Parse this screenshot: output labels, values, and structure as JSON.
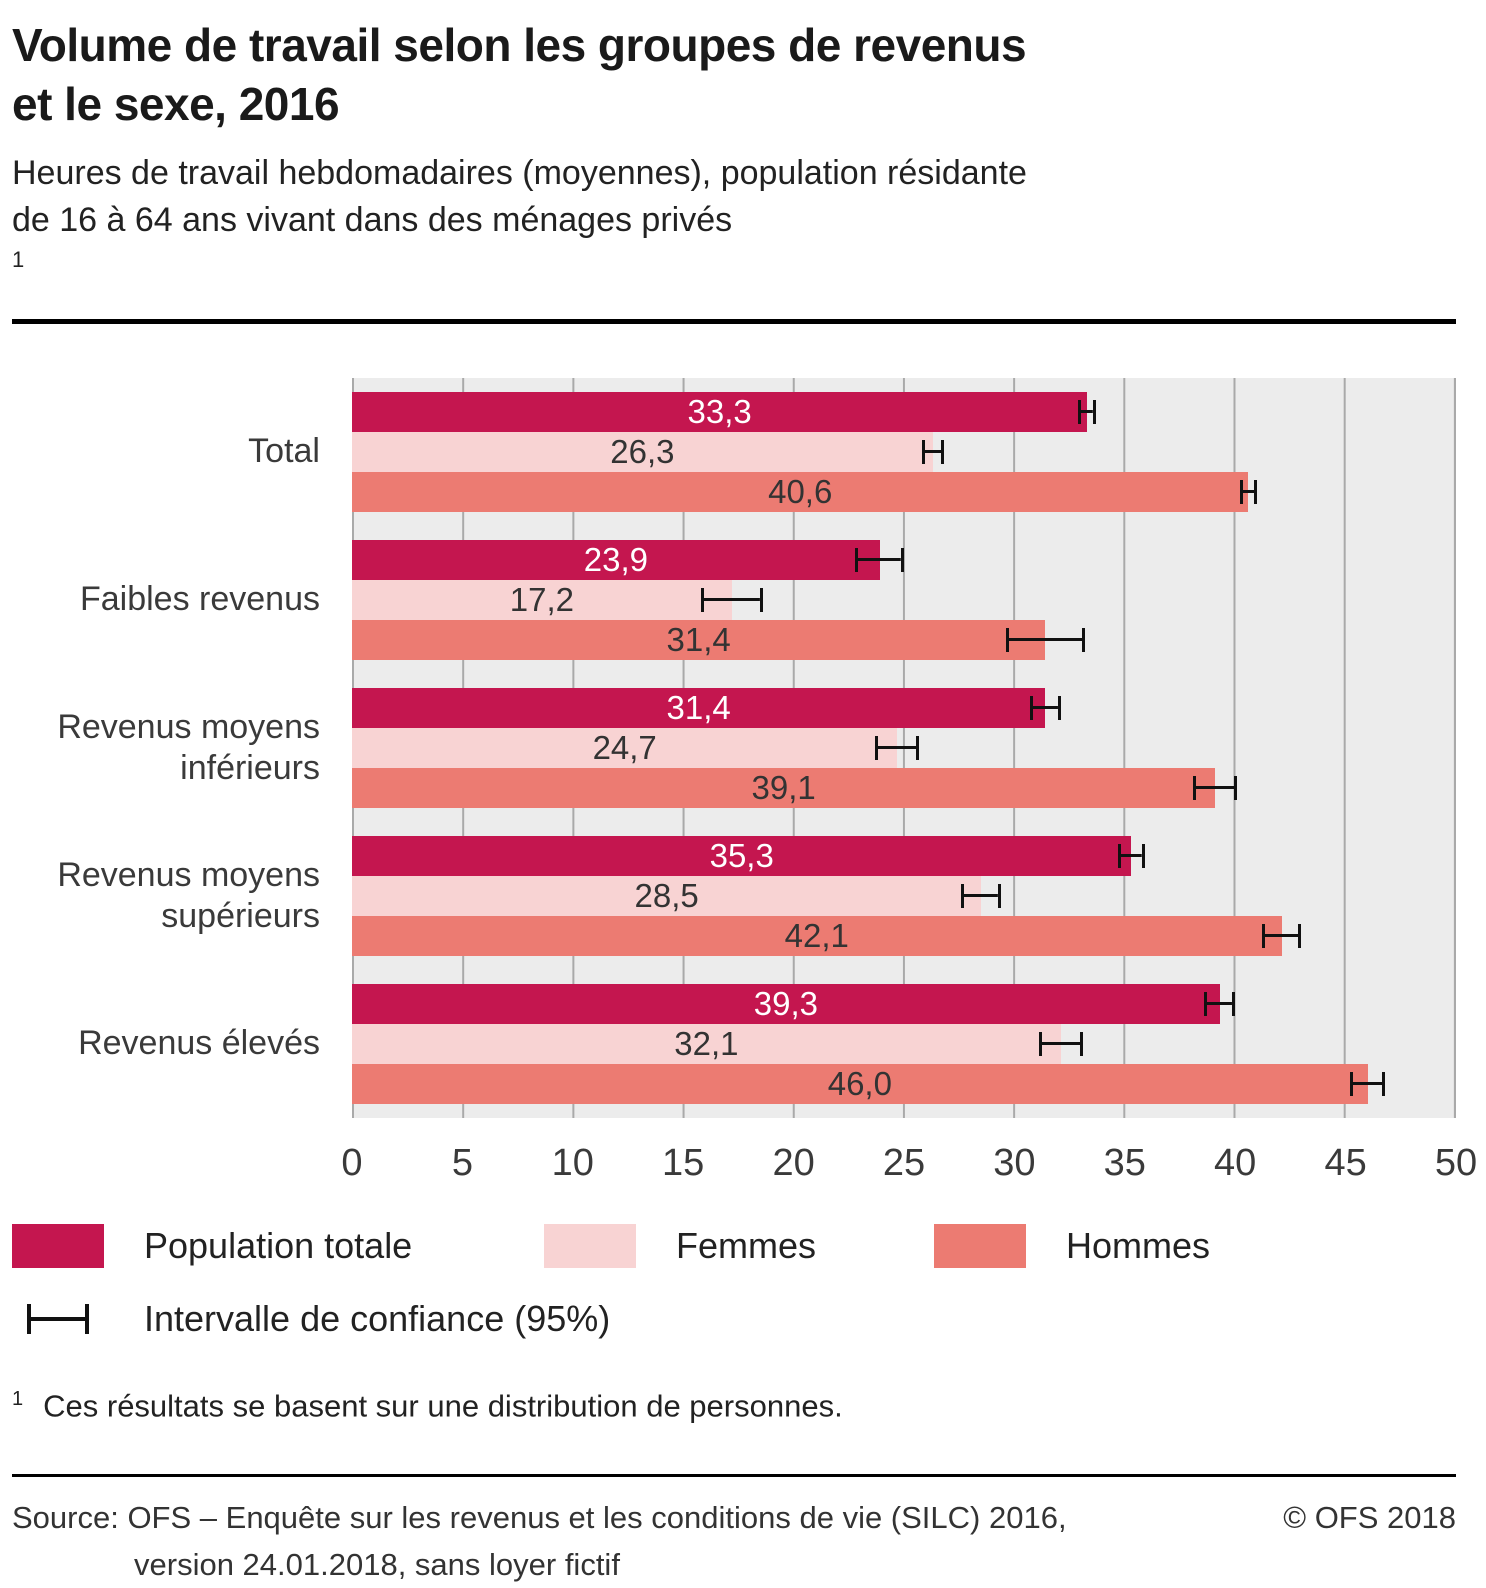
{
  "header": {
    "title_line1": "Volume de travail selon les groupes de revenus",
    "title_line2": "et le sexe, 2016",
    "subtitle_line1": "Heures de travail hebdomadaires (moyennes), population résidante",
    "subtitle_line2": "de 16 à 64 ans vivant dans des ménages privés",
    "subtitle_footnote_marker": "1"
  },
  "chart_data": {
    "type": "bar",
    "orientation": "horizontal",
    "title": "Volume de travail selon les groupes de revenus et le sexe, 2016",
    "categories": [
      "Total",
      "Faibles revenus",
      "Revenus moyens inférieurs",
      "Revenus moyens supérieurs",
      "Revenus élevés"
    ],
    "series": [
      {
        "key": "population-totale",
        "name": "Population totale",
        "color": "#c4164f",
        "label_color": "#ffffff",
        "values": [
          33.3,
          23.9,
          31.4,
          35.3,
          39.3
        ],
        "ci": [
          0.4,
          1.1,
          0.7,
          0.6,
          0.7
        ]
      },
      {
        "key": "femmes",
        "name": "Femmes",
        "color": "#f8d3d3",
        "label_color": "#333333",
        "values": [
          26.3,
          17.2,
          24.7,
          28.5,
          32.1
        ],
        "ci": [
          0.5,
          1.4,
          1.0,
          0.9,
          1.0
        ]
      },
      {
        "key": "hommes",
        "name": "Hommes",
        "color": "#ec7b72",
        "label_color": "#333333",
        "values": [
          40.6,
          31.4,
          39.1,
          42.1,
          46.0
        ],
        "ci": [
          0.4,
          1.8,
          1.0,
          0.9,
          0.8
        ]
      }
    ],
    "xlim": [
      0,
      50
    ],
    "xticks": [
      0,
      5,
      10,
      15,
      20,
      25,
      30,
      35,
      40,
      45,
      50
    ],
    "grid": "vertical",
    "plot_background": "#ececec",
    "grid_color": "#a9a9a9",
    "ci_color": "#111111",
    "ci_legend_label": "Intervalle de confiance (95%)",
    "value_decimal_separator": ","
  },
  "footnote": {
    "marker": "1",
    "text": "Ces résultats se basent sur une distribution de personnes."
  },
  "source": {
    "line1": "Source: OFS – Enquête sur les revenus et les conditions de vie (SILC) 2016,",
    "line2": "version 24.01.2018, sans loyer fictif",
    "copyright": "© OFS 2018"
  }
}
